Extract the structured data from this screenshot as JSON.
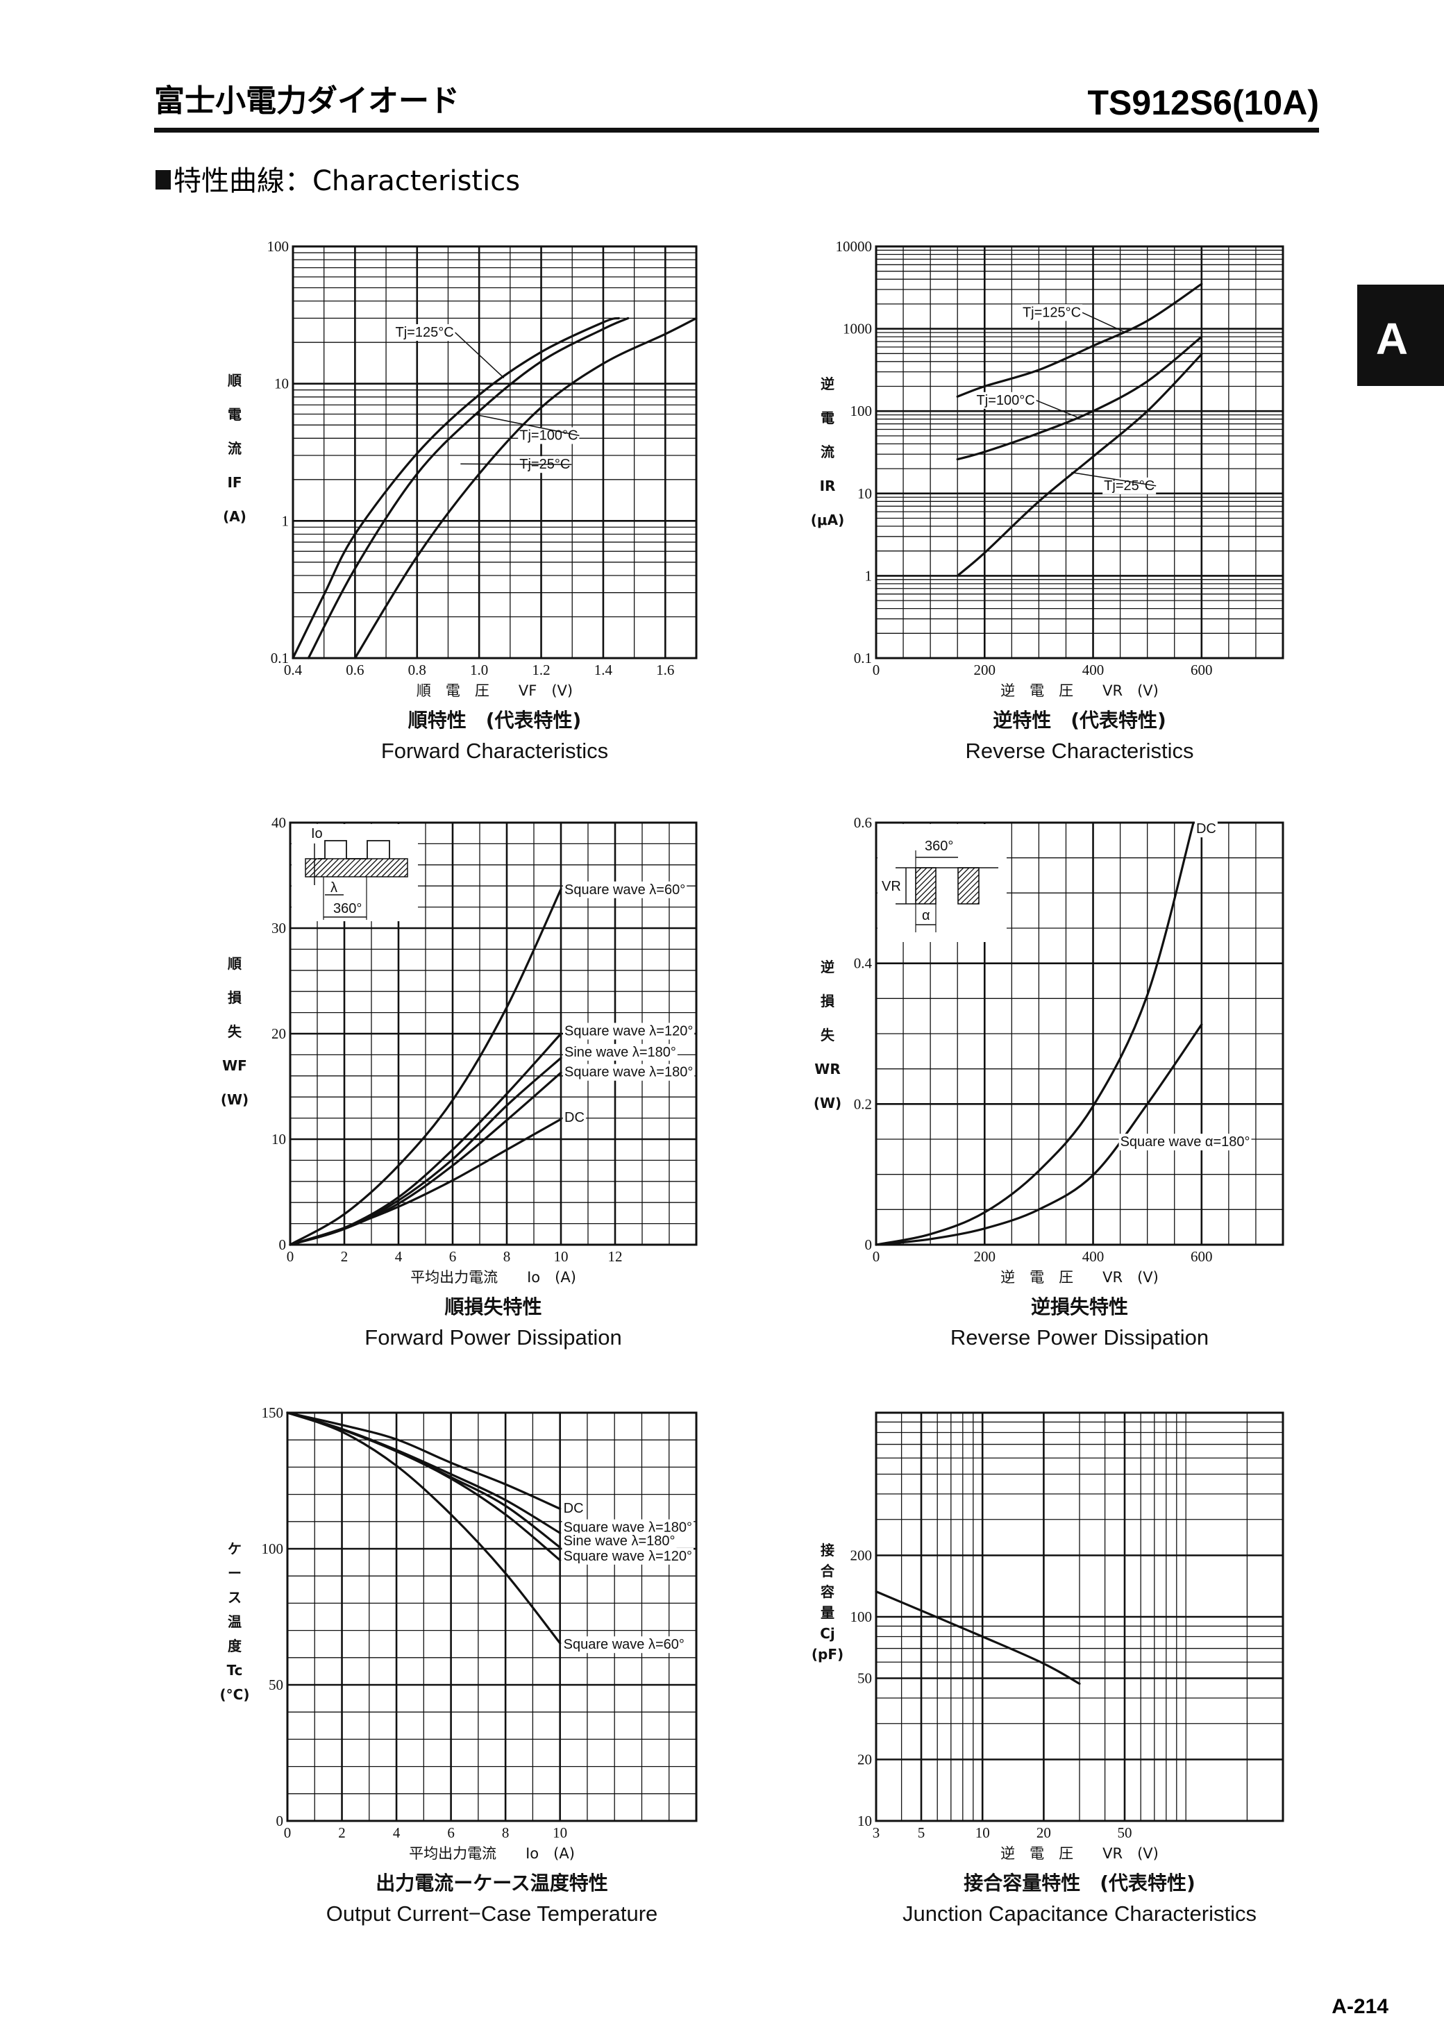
{
  "header": {
    "jp_title": "富士小電力ダイオード",
    "model": "TS912S6(10A)"
  },
  "section": {
    "heading": "特性曲線：Characteristics"
  },
  "side_tab": "A",
  "page_number": "A-214",
  "chart_data": [
    {
      "type": "line",
      "title": "Forward Characteristics",
      "title_jp": "順特性　(代表特性)",
      "xlabel": "順　電　圧　　VF　(V)",
      "ylabel_lines": [
        "順",
        "電",
        "流",
        "IF",
        "(A)"
      ],
      "xscale": "linear",
      "yscale": "log",
      "xlim": [
        0.4,
        1.7
      ],
      "ylim": [
        0.1,
        100
      ],
      "xticks": [
        0.4,
        0.6,
        0.8,
        1.0,
        1.2,
        1.4,
        1.6
      ],
      "xtick_labels": [
        "0.4",
        "0.6",
        "0.8",
        "1.0",
        "1.2",
        "1.4",
        "1.6"
      ],
      "yticks": [
        0.1,
        1,
        10,
        100
      ],
      "ytick_labels": [
        "0.1",
        "1",
        "10",
        "100"
      ],
      "grid": true,
      "series": [
        {
          "name": "Tj=125°C",
          "x": [
            0.4,
            0.5,
            0.6,
            0.8,
            1.0,
            1.2,
            1.4,
            1.45
          ],
          "y": [
            0.1,
            0.29,
            0.8,
            3.1,
            8.3,
            17,
            28,
            30
          ]
        },
        {
          "name": "Tj=100°C",
          "x": [
            0.45,
            0.6,
            0.8,
            1.0,
            1.2,
            1.4,
            1.48
          ],
          "y": [
            0.1,
            0.45,
            2.2,
            6.3,
            14.5,
            25,
            30
          ]
        },
        {
          "name": "Tj=25°C",
          "x": [
            0.6,
            0.8,
            1.0,
            1.2,
            1.4,
            1.6,
            1.7
          ],
          "y": [
            0.1,
            0.55,
            2.2,
            6.7,
            14,
            23,
            30
          ]
        }
      ]
    },
    {
      "type": "line",
      "title": "Reverse Characteristics",
      "title_jp": "逆特性　(代表特性)",
      "xlabel": "逆　電　圧　　VR　(V)",
      "ylabel_lines": [
        "逆",
        "電",
        "流",
        "IR",
        "(μA)"
      ],
      "xscale": "linear",
      "yscale": "log",
      "xlim": [
        0,
        750
      ],
      "ylim": [
        0.1,
        10000
      ],
      "xticks": [
        0,
        200,
        400,
        600
      ],
      "xtick_labels": [
        "0",
        "200",
        "400",
        "600"
      ],
      "yticks": [
        0.1,
        1,
        10,
        100,
        1000,
        10000
      ],
      "ytick_labels": [
        "0.1",
        "1",
        "10",
        "100",
        "1000",
        "10000"
      ],
      "grid": true,
      "series": [
        {
          "name": "Tj=125°C",
          "x": [
            150,
            200,
            300,
            400,
            500,
            600
          ],
          "y": [
            150,
            200,
            316,
            620,
            1250,
            3500
          ]
        },
        {
          "name": "Tj=100°C",
          "x": [
            150,
            200,
            300,
            400,
            500,
            600
          ],
          "y": [
            26,
            32,
            54,
            100,
            230,
            800
          ]
        },
        {
          "name": "Tj=25°C",
          "x": [
            150,
            200,
            300,
            400,
            500,
            600
          ],
          "y": [
            1,
            1.9,
            8,
            28,
            100,
            490
          ]
        }
      ]
    },
    {
      "type": "line",
      "title": "Forward Power Dissipation",
      "title_jp": "順損失特性",
      "xlabel": "平均出力電流　　Io　(A)",
      "ylabel_lines": [
        "順",
        "損",
        "失",
        "WF",
        "(W)"
      ],
      "xscale": "linear",
      "yscale": "linear",
      "xlim": [
        0,
        15
      ],
      "ylim": [
        0,
        40
      ],
      "xticks": [
        0,
        2,
        4,
        6,
        8,
        10,
        12
      ],
      "xtick_labels": [
        "0",
        "2",
        "4",
        "6",
        "8",
        "10",
        "12"
      ],
      "yticks": [
        0,
        10,
        20,
        30,
        40
      ],
      "ytick_labels": [
        "0",
        "10",
        "20",
        "30",
        "40"
      ],
      "grid": true,
      "inset_labels": [
        "Io",
        "λ",
        "360°"
      ],
      "series": [
        {
          "name": "Square wave λ=60°",
          "x": [
            0,
            2,
            4,
            6,
            8,
            10
          ],
          "y": [
            0,
            2.9,
            7.5,
            13.7,
            22.5,
            33.7
          ]
        },
        {
          "name": "Square wave λ=120°",
          "x": [
            0,
            2,
            4,
            6,
            8,
            10
          ],
          "y": [
            0,
            1.6,
            4.5,
            9,
            14.3,
            20
          ]
        },
        {
          "name": "Sine wave λ=180°",
          "x": [
            0,
            2,
            4,
            6,
            8,
            10
          ],
          "y": [
            0,
            1.5,
            4.2,
            8.1,
            13.2,
            17.7
          ]
        },
        {
          "name": "Square wave λ=180°",
          "x": [
            0,
            2,
            4,
            6,
            8,
            10
          ],
          "y": [
            0,
            1.5,
            3.9,
            7.5,
            11.8,
            16.3
          ]
        },
        {
          "name": "DC",
          "x": [
            0,
            2,
            4,
            6,
            8,
            10
          ],
          "y": [
            0,
            1.6,
            3.6,
            6.1,
            9,
            11.9
          ]
        }
      ]
    },
    {
      "type": "line",
      "title": "Reverse Power Dissipation",
      "title_jp": "逆損失特性",
      "xlabel": "逆　電　圧　　VR　(V)",
      "ylabel_lines": [
        "逆",
        "損",
        "失",
        "WR",
        "(W)"
      ],
      "xscale": "linear",
      "yscale": "linear",
      "xlim": [
        0,
        750
      ],
      "ylim": [
        0,
        0.6
      ],
      "xticks": [
        0,
        200,
        400,
        600
      ],
      "xtick_labels": [
        "0",
        "200",
        "400",
        "600"
      ],
      "yticks": [
        0,
        0.2,
        0.4,
        0.6
      ],
      "ytick_labels": [
        "0",
        "0.2",
        "0.4",
        "0.6"
      ],
      "grid": true,
      "inset_labels": [
        "360°",
        "VR",
        "α"
      ],
      "series": [
        {
          "name": "DC",
          "x": [
            0,
            100,
            200,
            300,
            400,
            500,
            585
          ],
          "y": [
            0,
            0.015,
            0.046,
            0.105,
            0.197,
            0.355,
            0.6
          ]
        },
        {
          "name": "Square wave α=180°",
          "x": [
            0,
            100,
            200,
            300,
            400,
            500,
            600
          ],
          "y": [
            0,
            0.008,
            0.023,
            0.05,
            0.099,
            0.2,
            0.313
          ]
        }
      ]
    },
    {
      "type": "line",
      "title": "Output Current−Case Temperature",
      "title_jp": "出力電流ーケース温度特性",
      "xlabel": "平均出力電流　　Io　(A)",
      "ylabel_lines": [
        "ケ",
        "ー",
        "ス",
        "温",
        "度",
        "Tc",
        "(°C)"
      ],
      "xscale": "linear",
      "yscale": "linear",
      "xlim": [
        0,
        15
      ],
      "ylim": [
        0,
        150
      ],
      "xticks": [
        0,
        2,
        4,
        6,
        8,
        10
      ],
      "xtick_labels": [
        "0",
        "2",
        "4",
        "6",
        "8",
        "10"
      ],
      "yticks": [
        0,
        50,
        100,
        150
      ],
      "ytick_labels": [
        "0",
        "50",
        "100",
        "150"
      ],
      "grid": true,
      "series": [
        {
          "name": "DC",
          "x": [
            0,
            2,
            4,
            6,
            8,
            10
          ],
          "y": [
            150,
            145.5,
            140.2,
            131.6,
            123.7,
            114.7
          ]
        },
        {
          "name": "Square wave λ=180°",
          "x": [
            0,
            2,
            4,
            6,
            8,
            10
          ],
          "y": [
            150,
            144,
            136.3,
            127.4,
            117.9,
            105.8
          ]
        },
        {
          "name": "Sine wave λ=180°",
          "x": [
            0,
            2,
            4,
            6,
            8,
            10
          ],
          "y": [
            150,
            144,
            136,
            126.3,
            115.8,
            100.5
          ]
        },
        {
          "name": "Square wave λ=120°",
          "x": [
            0,
            2,
            4,
            6,
            8,
            10
          ],
          "y": [
            150,
            143.8,
            135.8,
            125.8,
            112.6,
            95.8
          ]
        },
        {
          "name": "Square wave λ=60°",
          "x": [
            0,
            2,
            4,
            6,
            8,
            10
          ],
          "y": [
            150,
            143,
            130.5,
            112.6,
            91,
            65.3
          ]
        }
      ]
    },
    {
      "type": "line",
      "title": "Junction Capacitance Characteristics",
      "title_jp": "接合容量特性　(代表特性)",
      "xlabel": "逆　電　圧　　VR　(V)",
      "ylabel_lines": [
        "接",
        "合",
        "容",
        "量",
        "Cj",
        "(pF)"
      ],
      "xscale": "log",
      "yscale": "log",
      "xlim": [
        3,
        300
      ],
      "ylim": [
        10,
        1000
      ],
      "xticks": [
        3,
        5,
        10,
        20,
        50
      ],
      "xtick_labels": [
        "3",
        "5",
        "10",
        "20",
        "50"
      ],
      "yticks": [
        10,
        20,
        50,
        100,
        200
      ],
      "ytick_labels": [
        "10",
        "20",
        "50",
        "100",
        "200"
      ],
      "grid": true,
      "series": [
        {
          "x": [
            3,
            10,
            20,
            30
          ],
          "y": [
            133,
            80,
            59,
            47
          ]
        }
      ]
    }
  ]
}
